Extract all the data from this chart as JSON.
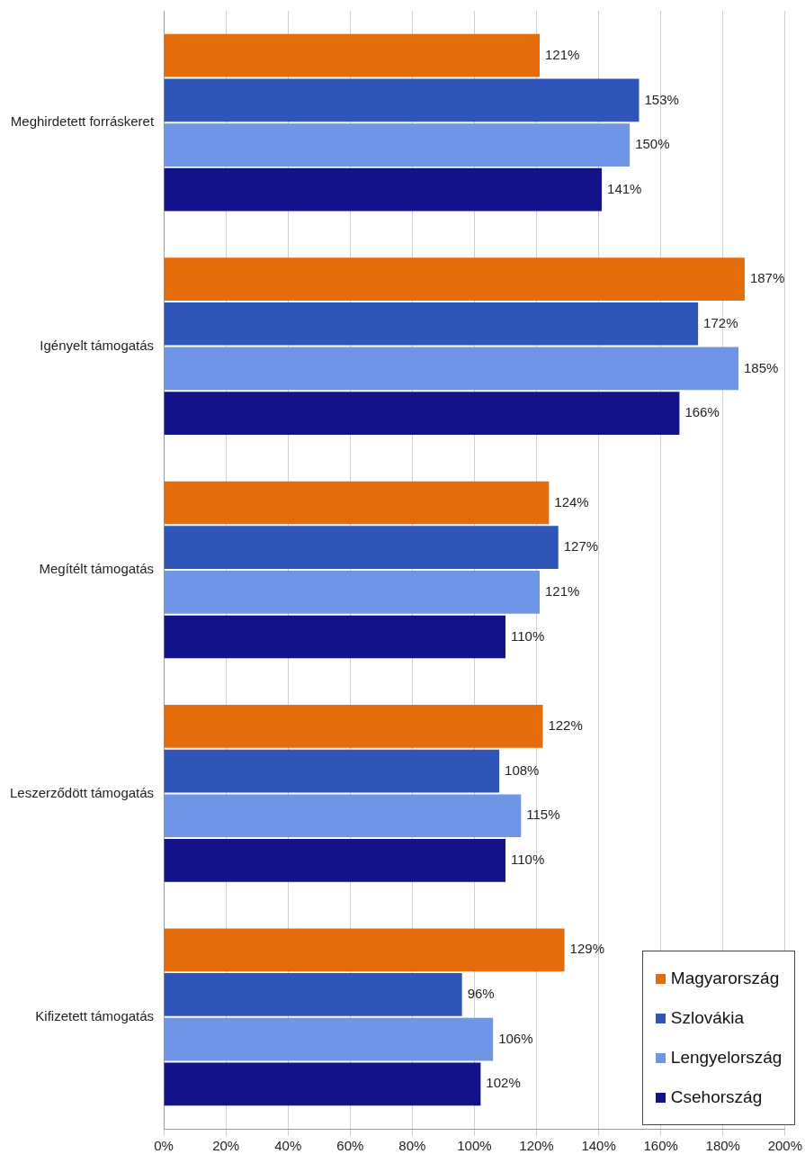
{
  "chart_data": {
    "type": "bar",
    "orientation": "horizontal",
    "categories": [
      "Meghirdetett forráskeret",
      "Igényelt támogatás",
      "Megítélt támogatás",
      "Leszerződött támogatás",
      "Kifizetett támogatás"
    ],
    "series": [
      {
        "name": "Magyarország",
        "color": "#e46c0a",
        "values": [
          121,
          187,
          124,
          122,
          129
        ],
        "value_labels": [
          "121%",
          "187%",
          "124%",
          "122%",
          "129%"
        ]
      },
      {
        "name": "Szlovákia",
        "color": "#2f55b8",
        "values": [
          153,
          172,
          127,
          108,
          96
        ],
        "value_labels": [
          "153%",
          "172%",
          "127%",
          "108%",
          "96%"
        ]
      },
      {
        "name": "Lengyelország",
        "color": "#6e95e6",
        "values": [
          150,
          185,
          121,
          115,
          106
        ],
        "value_labels": [
          "150%",
          "185%",
          "121%",
          "115%",
          "106%"
        ]
      },
      {
        "name": "Csehország",
        "color": "#12128a",
        "values": [
          141,
          166,
          110,
          110,
          102
        ],
        "value_labels": [
          "141%",
          "166%",
          "110%",
          "110%",
          "102%"
        ]
      }
    ],
    "xlim": [
      0,
      200
    ],
    "xticks": [
      {
        "value": 0,
        "label": "0%"
      },
      {
        "value": 20,
        "label": "20%"
      },
      {
        "value": 40,
        "label": "40%"
      },
      {
        "value": 60,
        "label": "60%"
      },
      {
        "value": 80,
        "label": "80%"
      },
      {
        "value": 100,
        "label": "100%"
      },
      {
        "value": 120,
        "label": "120%"
      },
      {
        "value": 140,
        "label": "140%"
      },
      {
        "value": 160,
        "label": "160%"
      },
      {
        "value": 180,
        "label": "180%"
      },
      {
        "value": 200,
        "label": "200%"
      }
    ],
    "grid": "x",
    "legend": "bottom right"
  }
}
